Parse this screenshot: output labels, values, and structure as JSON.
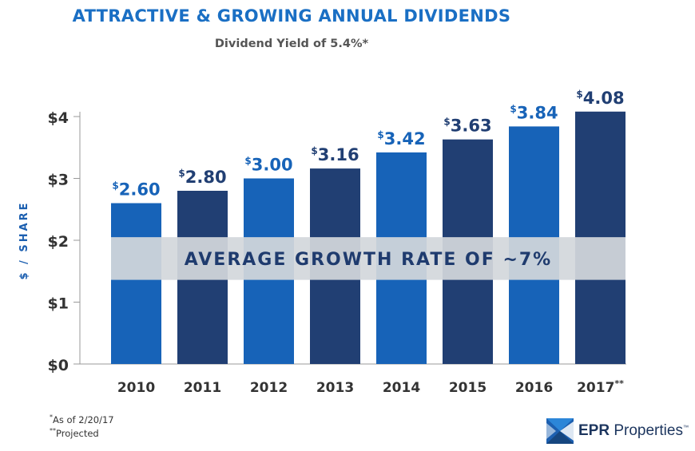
{
  "title": "ATTRACTIVE & GROWING ANNUAL DIVIDENDS",
  "subtitle": "Dividend Yield of 5.4%*",
  "chart_data": {
    "type": "bar",
    "ylabel": "$ / SHARE",
    "xlabel": "",
    "ylim": [
      0,
      4
    ],
    "yticks": [
      {
        "value": 0,
        "label": "$0"
      },
      {
        "value": 1,
        "label": "$1"
      },
      {
        "value": 2,
        "label": "$2"
      },
      {
        "value": 3,
        "label": "$3"
      },
      {
        "value": 4,
        "label": "$4"
      }
    ],
    "categories": [
      "2010",
      "2011",
      "2012",
      "2013",
      "2014",
      "2015",
      "2016",
      "2017"
    ],
    "category_marks": [
      "",
      "",
      "",
      "",
      "",
      "",
      "",
      "**"
    ],
    "values": [
      2.6,
      2.8,
      3.0,
      3.16,
      3.42,
      3.63,
      3.84,
      4.08
    ],
    "value_labels": [
      "2.60",
      "2.80",
      "3.00",
      "3.16",
      "3.42",
      "3.63",
      "3.84",
      "4.08"
    ],
    "currency_symbol": "$",
    "bar_colors": [
      "#1763b8",
      "#213f73",
      "#1763b8",
      "#213f73",
      "#1763b8",
      "#213f73",
      "#1763b8",
      "#213f73"
    ],
    "band": {
      "label": "AVERAGE GROWTH RATE OF ~7%",
      "from": 1.36,
      "to": 2.05,
      "color": "#d3d7dc"
    },
    "grid": false
  },
  "footnotes": [
    {
      "mark": "*",
      "text": "As of 2/20/17"
    },
    {
      "mark": "**",
      "text": "Projected"
    }
  ],
  "logo": {
    "bold": "EPR",
    "text": " Properties",
    "mark": "™"
  },
  "colors": {
    "accent": "#1a6fc4",
    "dark_bar": "#213f73",
    "light_bar": "#1763b8"
  }
}
